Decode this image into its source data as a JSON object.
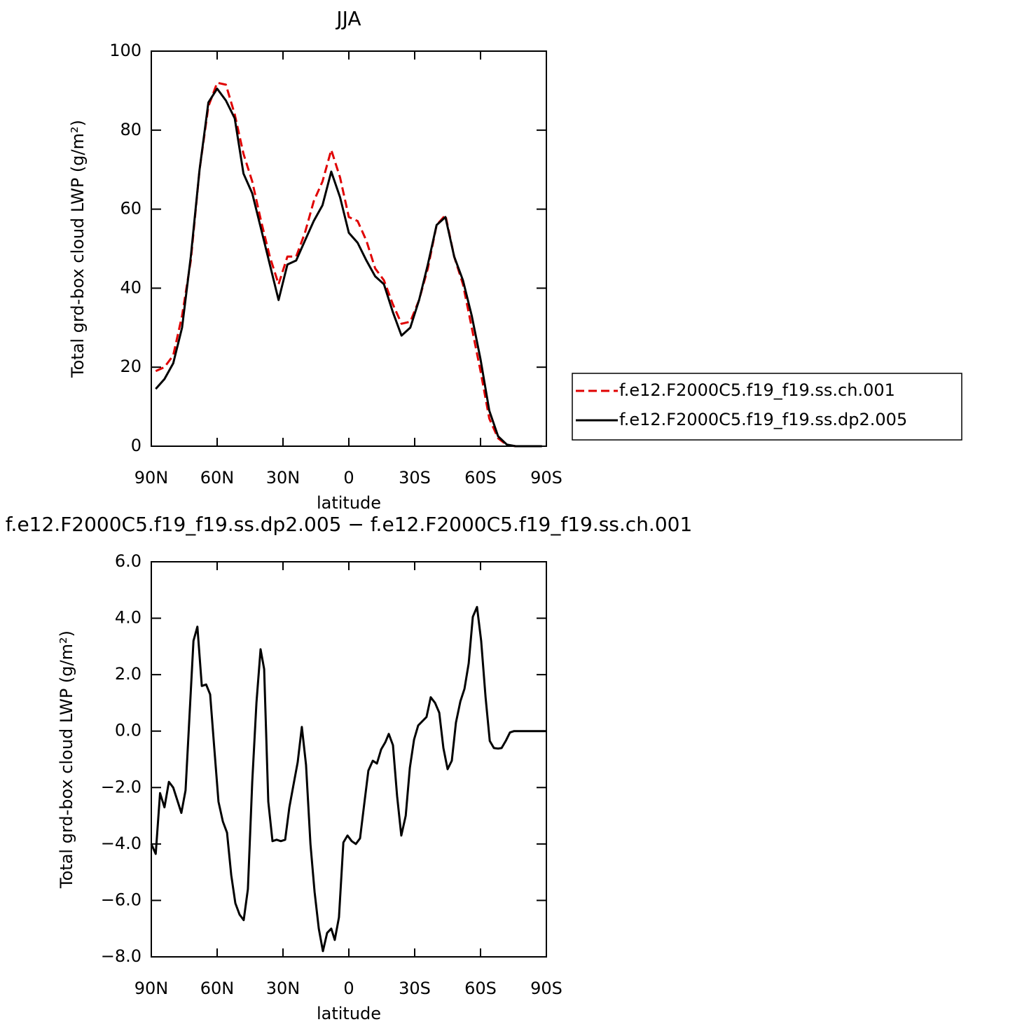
{
  "chart_data": [
    {
      "type": "line",
      "title": "JJA",
      "xlabel": "latitude",
      "ylabel": "Total grd-box cloud LWP (g/m²)",
      "x": [
        88,
        84,
        80,
        76,
        72,
        68,
        64,
        60,
        56,
        52,
        48,
        44,
        40,
        36,
        32,
        28,
        24,
        20,
        16,
        12,
        8,
        4,
        0,
        -4,
        -8,
        -12,
        -16,
        -20,
        -24,
        -28,
        -32,
        -36,
        -40,
        -44,
        -48,
        -52,
        -56,
        -60,
        -64,
        -68,
        -72,
        -76,
        -80,
        -84,
        -88
      ],
      "series": [
        {
          "name": "f.e12.F2000C5.f19_f19.ss.ch.001",
          "color": "#e00000",
          "dash": true,
          "values": [
            19,
            20,
            23,
            33,
            47,
            70,
            86,
            92,
            91.5,
            84,
            74,
            67,
            57,
            48,
            41,
            48,
            48,
            54,
            62,
            67,
            75,
            68,
            58,
            57,
            52,
            45,
            42,
            36,
            31,
            31.5,
            37,
            45,
            56,
            58.5,
            48,
            41,
            30,
            19,
            7,
            2,
            0.3,
            0,
            0,
            0,
            0
          ]
        },
        {
          "name": "f.e12.F2000C5.f19_f19.ss.dp2.005",
          "color": "#000000",
          "dash": false,
          "values": [
            14.5,
            17,
            21,
            30,
            48,
            70,
            87,
            90.5,
            87.5,
            83,
            69,
            64,
            55,
            46,
            37,
            46,
            47,
            52,
            57,
            61,
            69.5,
            63,
            54,
            51.5,
            47,
            43,
            41,
            34,
            28,
            30,
            37,
            46,
            56,
            58,
            48,
            42,
            33,
            22,
            9,
            2.5,
            0.4,
            0,
            0,
            0,
            0
          ]
        }
      ],
      "xlim": [
        90,
        -90
      ],
      "xticks": [
        {
          "value": 90,
          "label": "90N"
        },
        {
          "value": 60,
          "label": "60N"
        },
        {
          "value": 30,
          "label": "30N"
        },
        0,
        {
          "value": -30,
          "label": "30S"
        },
        {
          "value": -60,
          "label": "60S"
        },
        {
          "value": -90,
          "label": "90S"
        }
      ],
      "ylim": [
        0,
        100
      ],
      "yticks": [
        0,
        20,
        40,
        60,
        80,
        100
      ],
      "legend": "right"
    },
    {
      "type": "line",
      "title": "f.e12.F2000C5.f19_f19.ss.dp2.005 − f.e12.F2000C5.f19_f19.ss.ch.001",
      "xlabel": "latitude",
      "ylabel": "Total grd-box cloud LWP (g/m²)",
      "x": [
        90,
        88,
        86,
        84,
        82,
        80,
        76.3,
        74.4,
        70.8,
        69,
        67,
        65,
        63.2,
        61.3,
        59.4,
        57.4,
        55.5,
        53.6,
        51.7,
        49.8,
        47.9,
        46,
        44,
        42.1,
        40.2,
        38.6,
        36.7,
        34.8,
        32.9,
        31,
        29,
        27.1,
        25.2,
        23.3,
        21.4,
        19.5,
        17.5,
        15.6,
        13.7,
        11.8,
        9.9,
        8,
        6.4,
        4.5,
        2.5,
        0.6,
        -1.3,
        -3.2,
        -5.1,
        -7,
        -8.9,
        -10.9,
        -12.8,
        -14.7,
        -16.6,
        -18.2,
        -20.1,
        -22,
        -23.9,
        -25.9,
        -27.8,
        -29.7,
        -31.6,
        -33.5,
        -35.4,
        -37.3,
        -39.3,
        -41.2,
        -43.1,
        -45,
        -46.9,
        -48.8,
        -50.8,
        -52.7,
        -54.6,
        -56.5,
        -58.4,
        -60.3,
        -62.3,
        -64.2,
        -66.1,
        -68,
        -69.6,
        -71.5,
        -73.4,
        -75.3,
        -90
      ],
      "series": [
        {
          "color": "#000000",
          "dash": false,
          "values": [
            -4.0,
            -4.35,
            -2.2,
            -2.7,
            -1.8,
            -2.0,
            -2.9,
            -2.1,
            3.2,
            3.7,
            1.6,
            1.65,
            1.3,
            -0.6,
            -2.5,
            -3.2,
            -3.6,
            -5.1,
            -6.1,
            -6.5,
            -6.7,
            -5.6,
            -1.8,
            1.0,
            2.9,
            2.2,
            -2.5,
            -3.9,
            -3.85,
            -3.9,
            -3.85,
            -2.7,
            -1.9,
            -1.1,
            0.15,
            -1.2,
            -4.0,
            -5.7,
            -7.0,
            -7.8,
            -7.15,
            -7.0,
            -7.4,
            -6.6,
            -3.95,
            -3.7,
            -3.9,
            -4.0,
            -3.8,
            -2.6,
            -1.4,
            -1.05,
            -1.15,
            -0.65,
            -0.4,
            -0.1,
            -0.5,
            -2.3,
            -3.7,
            -3.0,
            -1.3,
            -0.3,
            0.2,
            0.35,
            0.5,
            1.2,
            1.0,
            0.65,
            -0.6,
            -1.35,
            -1.05,
            0.3,
            1.05,
            1.5,
            2.4,
            4.05,
            4.4,
            3.2,
            1.2,
            -0.35,
            -0.6,
            -0.62,
            -0.6,
            -0.35,
            -0.05,
            0.0,
            0.0
          ]
        }
      ],
      "xlim": [
        90,
        -90
      ],
      "xticks": [
        {
          "value": 90,
          "label": "90N"
        },
        {
          "value": 60,
          "label": "60N"
        },
        {
          "value": 30,
          "label": "30N"
        },
        0,
        {
          "value": -30,
          "label": "30S"
        },
        {
          "value": -60,
          "label": "60S"
        },
        {
          "value": -90,
          "label": "90S"
        }
      ],
      "ylim": [
        -8,
        6
      ],
      "yticks": [
        {
          "value": -8,
          "label": "−8.0"
        },
        {
          "value": -6,
          "label": "−6.0"
        },
        {
          "value": -4,
          "label": "−4.0"
        },
        {
          "value": -2,
          "label": "−2.0"
        },
        {
          "value": 0,
          "label": "0.0"
        },
        {
          "value": 2,
          "label": "2.0"
        },
        {
          "value": 4,
          "label": "4.0"
        },
        {
          "value": 6,
          "label": "6.0"
        }
      ]
    }
  ]
}
